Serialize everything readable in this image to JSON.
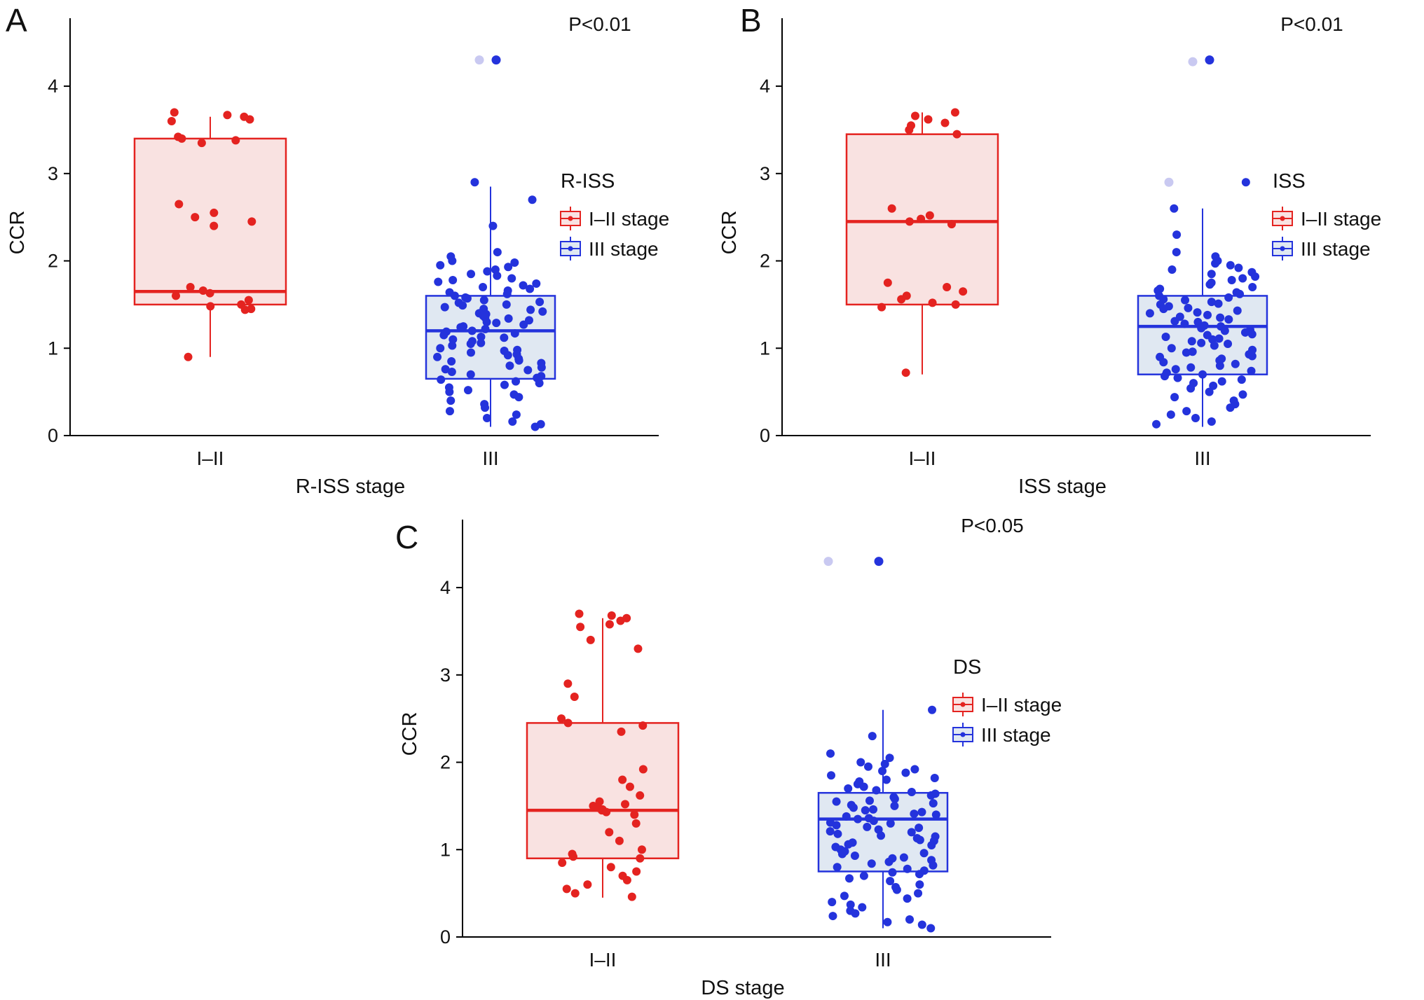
{
  "figure": {
    "background": "#ffffff"
  },
  "colors": {
    "red": "#E42320",
    "red_fill": "#F9E2E1",
    "blue": "#2433DC",
    "blue_fill": "#E0E8F2",
    "light_outlier": "#C9C9F1",
    "axis": "#000000",
    "text": "#111111"
  },
  "chart_data": [
    {
      "type": "boxplot",
      "panel": "A",
      "p_label": "P<0.01",
      "xlabel": "R-ISS stage",
      "ylabel": "CCR",
      "ylim": [
        0,
        4.65
      ],
      "yticks": [
        0,
        1,
        2,
        3,
        4
      ],
      "grid": false,
      "categories": [
        "I–II",
        "III"
      ],
      "legend": {
        "title": "R-ISS",
        "position": "right",
        "items": [
          {
            "label": "I–II stage",
            "color": "#E42320",
            "fill": "#F9E2E1"
          },
          {
            "label": "III stage",
            "color": "#2433DC",
            "fill": "#E0E8F2"
          }
        ]
      },
      "series": [
        {
          "name": "I–II stage",
          "category": "I–II",
          "color": "#E42320",
          "fill": "#F9E2E1",
          "box": {
            "whisker_low": 0.9,
            "q1": 1.5,
            "median": 1.65,
            "q3": 3.4,
            "whisker_high": 3.65
          },
          "points": [
            3.7,
            3.67,
            3.65,
            3.62,
            3.6,
            3.42,
            3.4,
            3.38,
            3.35,
            2.65,
            2.55,
            2.5,
            2.45,
            2.4,
            1.7,
            1.66,
            1.63,
            1.6,
            1.55,
            1.5,
            1.48,
            1.45,
            1.44,
            0.9
          ]
        },
        {
          "name": "III stage",
          "category": "III",
          "color": "#2433DC",
          "fill": "#E0E8F2",
          "box": {
            "whisker_low": 0.1,
            "q1": 0.65,
            "median": 1.2,
            "q3": 1.6,
            "whisker_high": 2.85
          },
          "points": [
            2.9,
            2.7,
            2.4,
            2.1,
            2.05,
            2.0,
            1.98,
            1.95,
            1.93,
            1.9,
            1.88,
            1.85,
            1.83,
            1.8,
            1.78,
            1.76,
            1.74,
            1.72,
            1.7,
            1.68,
            1.66,
            1.64,
            1.62,
            1.6,
            1.58,
            1.57,
            1.55,
            1.53,
            1.52,
            1.5,
            1.49,
            1.47,
            1.45,
            1.44,
            1.42,
            1.4,
            1.39,
            1.37,
            1.35,
            1.34,
            1.32,
            1.3,
            1.29,
            1.27,
            1.25,
            1.24,
            1.22,
            1.2,
            1.19,
            1.17,
            1.15,
            1.13,
            1.12,
            1.1,
            1.08,
            1.06,
            1.05,
            1.03,
            1.0,
            0.98,
            0.97,
            0.95,
            0.93,
            0.92,
            0.9,
            0.88,
            0.86,
            0.85,
            0.83,
            0.8,
            0.78,
            0.76,
            0.75,
            0.73,
            0.7,
            0.68,
            0.66,
            0.64,
            0.62,
            0.6,
            0.58,
            0.55,
            0.52,
            0.5,
            0.47,
            0.44,
            0.4,
            0.36,
            0.32,
            0.28,
            0.24,
            0.2,
            0.16,
            0.13,
            0.1
          ],
          "outliers": [
            {
              "y": 4.3,
              "shade": "dark",
              "dx": 8
            },
            {
              "y": 4.3,
              "shade": "light",
              "dx": -16
            }
          ]
        }
      ]
    },
    {
      "type": "boxplot",
      "panel": "B",
      "p_label": "P<0.01",
      "xlabel": "ISS stage",
      "ylabel": "CCR",
      "ylim": [
        0,
        4.65
      ],
      "yticks": [
        0,
        1,
        2,
        3,
        4
      ],
      "grid": false,
      "categories": [
        "I–II",
        "III"
      ],
      "legend": {
        "title": "ISS",
        "position": "right",
        "items": [
          {
            "label": "I–II stage",
            "color": "#E42320",
            "fill": "#F9E2E1"
          },
          {
            "label": "III stage",
            "color": "#2433DC",
            "fill": "#E0E8F2"
          }
        ]
      },
      "series": [
        {
          "name": "I–II stage",
          "category": "I–II",
          "color": "#E42320",
          "fill": "#F9E2E1",
          "box": {
            "whisker_low": 0.7,
            "q1": 1.5,
            "median": 2.45,
            "q3": 3.45,
            "whisker_high": 3.7
          },
          "points": [
            3.7,
            3.66,
            3.62,
            3.58,
            3.55,
            3.5,
            3.45,
            2.6,
            2.52,
            2.48,
            2.45,
            2.42,
            1.75,
            1.7,
            1.65,
            1.6,
            1.56,
            1.52,
            1.5,
            1.47,
            0.72
          ]
        },
        {
          "name": "III stage",
          "category": "III",
          "color": "#2433DC",
          "fill": "#E0E8F2",
          "box": {
            "whisker_low": 0.1,
            "q1": 0.7,
            "median": 1.25,
            "q3": 1.6,
            "whisker_high": 2.6
          },
          "points": [
            2.9,
            2.6,
            2.3,
            2.1,
            2.05,
            2.0,
            1.97,
            1.95,
            1.92,
            1.9,
            1.87,
            1.85,
            1.82,
            1.8,
            1.78,
            1.75,
            1.73,
            1.7,
            1.68,
            1.66,
            1.64,
            1.62,
            1.6,
            1.58,
            1.56,
            1.55,
            1.53,
            1.51,
            1.5,
            1.48,
            1.46,
            1.45,
            1.43,
            1.41,
            1.4,
            1.38,
            1.36,
            1.35,
            1.33,
            1.31,
            1.3,
            1.28,
            1.26,
            1.25,
            1.23,
            1.21,
            1.2,
            1.18,
            1.16,
            1.15,
            1.13,
            1.11,
            1.1,
            1.08,
            1.06,
            1.05,
            1.03,
            1.0,
            0.98,
            0.96,
            0.95,
            0.93,
            0.91,
            0.9,
            0.88,
            0.86,
            0.84,
            0.82,
            0.8,
            0.78,
            0.76,
            0.74,
            0.72,
            0.7,
            0.68,
            0.66,
            0.64,
            0.62,
            0.6,
            0.57,
            0.54,
            0.5,
            0.47,
            0.44,
            0.4,
            0.36,
            0.32,
            0.28,
            0.24,
            0.2,
            0.16,
            0.13
          ],
          "outliers": [
            {
              "y": 4.3,
              "shade": "dark",
              "dx": 10
            },
            {
              "y": 4.28,
              "shade": "light",
              "dx": -14
            },
            {
              "y": 2.9,
              "shade": "light",
              "dx": -48
            }
          ]
        }
      ]
    },
    {
      "type": "boxplot",
      "panel": "C",
      "p_label": "P<0.05",
      "xlabel": "DS stage",
      "ylabel": "CCR",
      "ylim": [
        0,
        4.65
      ],
      "yticks": [
        0,
        1,
        2,
        3,
        4
      ],
      "grid": false,
      "categories": [
        "I–II",
        "III"
      ],
      "legend": {
        "title": "DS",
        "position": "right",
        "items": [
          {
            "label": "I–II stage",
            "color": "#E42320",
            "fill": "#F9E2E1"
          },
          {
            "label": "III stage",
            "color": "#2433DC",
            "fill": "#E0E8F2"
          }
        ]
      },
      "series": [
        {
          "name": "I–II stage",
          "category": "I–II",
          "color": "#E42320",
          "fill": "#F9E2E1",
          "box": {
            "whisker_low": 0.45,
            "q1": 0.9,
            "median": 1.45,
            "q3": 2.45,
            "whisker_high": 3.65
          },
          "points": [
            3.7,
            3.68,
            3.65,
            3.62,
            3.58,
            3.55,
            3.4,
            3.3,
            2.9,
            2.75,
            2.5,
            2.45,
            2.42,
            2.35,
            1.92,
            1.8,
            1.72,
            1.62,
            1.55,
            1.52,
            1.5,
            1.48,
            1.46,
            1.45,
            1.43,
            1.4,
            1.3,
            1.2,
            1.1,
            1.0,
            0.95,
            0.92,
            0.9,
            0.85,
            0.8,
            0.75,
            0.7,
            0.65,
            0.6,
            0.55,
            0.5,
            0.46
          ]
        },
        {
          "name": "III stage",
          "category": "III",
          "color": "#2433DC",
          "fill": "#E0E8F2",
          "box": {
            "whisker_low": 0.1,
            "q1": 0.75,
            "median": 1.35,
            "q3": 1.65,
            "whisker_high": 2.6
          },
          "points": [
            2.6,
            2.3,
            2.1,
            2.05,
            2.0,
            1.98,
            1.95,
            1.92,
            1.9,
            1.88,
            1.85,
            1.82,
            1.8,
            1.78,
            1.75,
            1.72,
            1.7,
            1.68,
            1.66,
            1.64,
            1.62,
            1.6,
            1.58,
            1.56,
            1.55,
            1.53,
            1.51,
            1.5,
            1.48,
            1.46,
            1.45,
            1.43,
            1.41,
            1.4,
            1.38,
            1.36,
            1.35,
            1.33,
            1.31,
            1.3,
            1.28,
            1.26,
            1.25,
            1.23,
            1.21,
            1.2,
            1.18,
            1.16,
            1.15,
            1.13,
            1.11,
            1.1,
            1.08,
            1.06,
            1.05,
            1.03,
            1.0,
            0.98,
            0.96,
            0.95,
            0.93,
            0.91,
            0.9,
            0.88,
            0.86,
            0.84,
            0.82,
            0.8,
            0.78,
            0.76,
            0.74,
            0.72,
            0.7,
            0.67,
            0.64,
            0.6,
            0.57,
            0.54,
            0.5,
            0.47,
            0.44,
            0.4,
            0.37,
            0.34,
            0.3,
            0.27,
            0.24,
            0.2,
            0.17,
            0.14,
            0.1
          ],
          "outliers": [
            {
              "y": 4.3,
              "shade": "dark",
              "dx": -6
            },
            {
              "y": 4.3,
              "shade": "light",
              "dx": -78
            }
          ]
        }
      ]
    }
  ]
}
